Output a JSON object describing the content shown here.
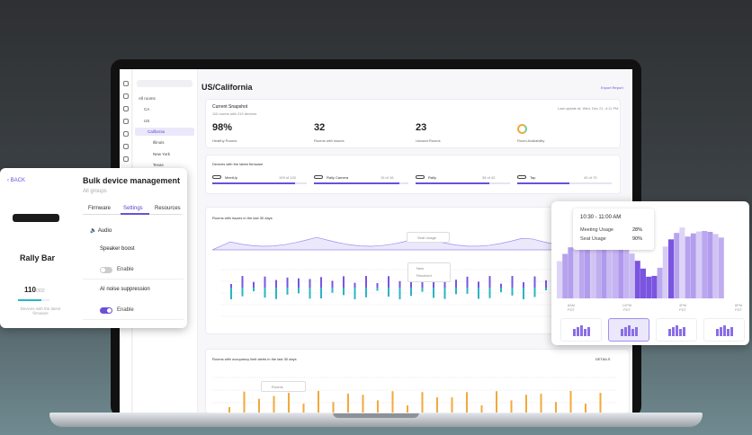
{
  "header": {
    "title": "US/California",
    "export": "Export Report"
  },
  "sidebar": {
    "tree": [
      "All rooms",
      "CA",
      "US",
      "California",
      "Illinois",
      "New York",
      "Texas"
    ]
  },
  "snapshot": {
    "title": "Current Snapshot",
    "subtitle": "110 rooms with 219 devices",
    "updated": "Last update at: Wed, Dec 21, 4:11 PM",
    "stats": [
      {
        "value": "98%",
        "label": "Healthy Rooms"
      },
      {
        "value": "32",
        "label": "Rooms with Issues"
      },
      {
        "value": "23",
        "label": "Unused Rooms"
      },
      {
        "label": "Room Availability"
      }
    ]
  },
  "firmware": {
    "title": "Devices with the latest firmware",
    "devices": [
      {
        "name": "MeetUp",
        "count": "109 of 120"
      },
      {
        "name": "Rally Camera",
        "count": "15 of 16"
      },
      {
        "name": "Rally",
        "count": "36 of 42"
      },
      {
        "name": "Tap",
        "count": "40 of 70"
      }
    ]
  },
  "issues": {
    "title": "Rooms with issues in the last 30 days",
    "tooltip": "Seat Usage",
    "legend": [
      "New",
      "Resolved"
    ]
  },
  "occupancy": {
    "title": "Rooms with occupancy limit alerts in the last 30 days",
    "details": "DETAILS",
    "legend": "Rooms"
  },
  "bulk_panel": {
    "back": "BACK",
    "title": "Bulk device management",
    "subtitle": "All groups",
    "tabs": [
      "Firmware",
      "Settings",
      "Resources"
    ],
    "device": "Rally Bar",
    "count": "110",
    "total": "/302",
    "note": "Devices with the latest firmware",
    "section": "Audio",
    "settings": [
      {
        "name": "Speaker boost",
        "toggle": "Enable"
      },
      {
        "name": "AI noise suppression",
        "toggle": "Enable"
      }
    ]
  },
  "usage_panel": {
    "time": "10:30 - 11:00 AM",
    "rows": [
      {
        "label": "Meeting Usage",
        "value": "28%"
      },
      {
        "label": "Seat Usage",
        "value": "90%"
      }
    ],
    "axis": [
      "8AM PDT",
      "12PM PDT",
      "4PM PDT",
      "8PM PDT"
    ]
  }
}
